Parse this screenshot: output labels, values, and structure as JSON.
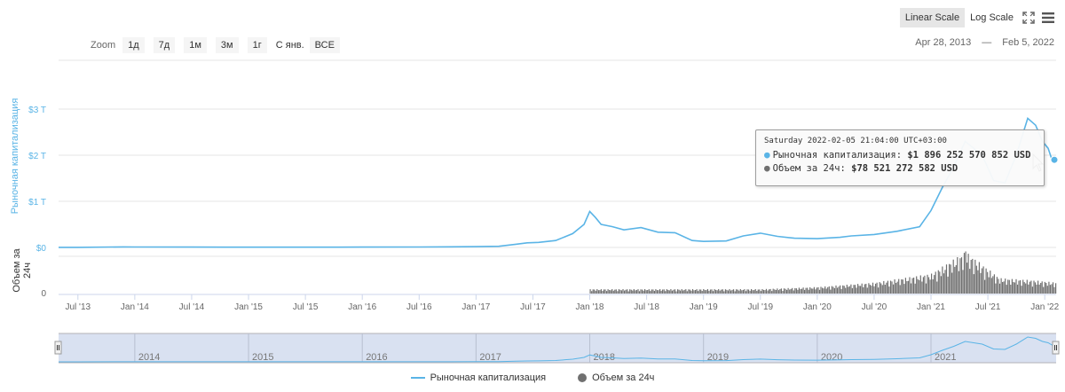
{
  "toolbar": {
    "linear_label": "Linear Scale",
    "log_label": "Log Scale",
    "zoom_label": "Zoom",
    "zoom_buttons": [
      "1д",
      "7д",
      "1м",
      "3м",
      "1г"
    ],
    "ytd_label": "С янв.",
    "all_label": "ВСЕ",
    "range_from": "Apr 28, 2013",
    "range_sep": "—",
    "range_to": "Feb 5, 2022"
  },
  "colors": {
    "market_cap": "#5ab4e6",
    "volume": "#707070"
  },
  "chart_data": {
    "type": "line",
    "x_ticks": [
      "Jul '13",
      "Jan '14",
      "Jul '14",
      "Jan '15",
      "Jul '15",
      "Jan '16",
      "Jul '16",
      "Jan '17",
      "Jul '17",
      "Jan '18",
      "Jul '18",
      "Jan '19",
      "Jul '19",
      "Jan '20",
      "Jul '20",
      "Jan '21",
      "Jul '21",
      "Jan '22"
    ],
    "y_ticks": [
      "$0",
      "$1 T",
      "$2 T",
      "$3 T"
    ],
    "y_tick_values": [
      0,
      1,
      2,
      3
    ],
    "ylabel": "Рыночная капитализация",
    "y2_label": "Объем за 24ч",
    "y2_tick": "0",
    "ylim": [
      0,
      3.4
    ],
    "navigator_years": [
      "2014",
      "2015",
      "2016",
      "2017",
      "2018",
      "2019",
      "2020",
      "2021"
    ],
    "series": [
      {
        "name": "Рыночная капитализация",
        "unit": "trillion USD",
        "x": [
          2013.33,
          2013.5,
          2013.9,
          2014.0,
          2014.5,
          2015.0,
          2015.5,
          2016.0,
          2016.5,
          2017.0,
          2017.2,
          2017.35,
          2017.45,
          2017.55,
          2017.7,
          2017.85,
          2017.95,
          2018.0,
          2018.05,
          2018.1,
          2018.2,
          2018.3,
          2018.45,
          2018.6,
          2018.75,
          2018.9,
          2019.0,
          2019.2,
          2019.35,
          2019.5,
          2019.65,
          2019.8,
          2020.0,
          2020.2,
          2020.3,
          2020.5,
          2020.7,
          2020.9,
          2021.0,
          2021.1,
          2021.2,
          2021.3,
          2021.4,
          2021.45,
          2021.55,
          2021.65,
          2021.75,
          2021.85,
          2021.92,
          2021.98,
          2022.03,
          2022.07,
          2022.1
        ],
        "values": [
          0.002,
          0.002,
          0.012,
          0.01,
          0.008,
          0.005,
          0.005,
          0.007,
          0.01,
          0.018,
          0.025,
          0.07,
          0.1,
          0.11,
          0.15,
          0.3,
          0.5,
          0.78,
          0.65,
          0.5,
          0.45,
          0.38,
          0.43,
          0.33,
          0.32,
          0.15,
          0.13,
          0.14,
          0.25,
          0.31,
          0.24,
          0.2,
          0.19,
          0.22,
          0.25,
          0.28,
          0.35,
          0.45,
          0.8,
          1.3,
          1.75,
          2.3,
          2.1,
          2.0,
          1.45,
          1.4,
          2.0,
          2.8,
          2.65,
          2.3,
          2.15,
          1.85,
          1.9
        ]
      },
      {
        "name": "Объем за 24ч",
        "unit": "USD",
        "x": [
          2018.0,
          2019.0,
          2019.5,
          2020.0,
          2020.5,
          2021.0,
          2021.3,
          2021.6,
          2021.9,
          2022.1
        ],
        "values": [
          0.1,
          0.1,
          0.1,
          0.15,
          0.25,
          0.45,
          0.95,
          0.35,
          0.3,
          0.25
        ]
      }
    ],
    "tooltip": {
      "date": "Saturday 2022-02-05 21:04:00 UTC+03:00",
      "rows": [
        {
          "label": "Рыночная капитализация:",
          "value": "$1 896 252 570 852 USD",
          "color": "#5ab4e6"
        },
        {
          "label": "Объем за 24ч:",
          "value": "$78 521 272 582 USD",
          "color": "#707070"
        }
      ]
    },
    "legend": [
      {
        "name": "Рыночная капитализация",
        "marker": "line",
        "color": "#5ab4e6"
      },
      {
        "name": "Объем за 24ч",
        "marker": "circle",
        "color": "#707070"
      }
    ]
  }
}
